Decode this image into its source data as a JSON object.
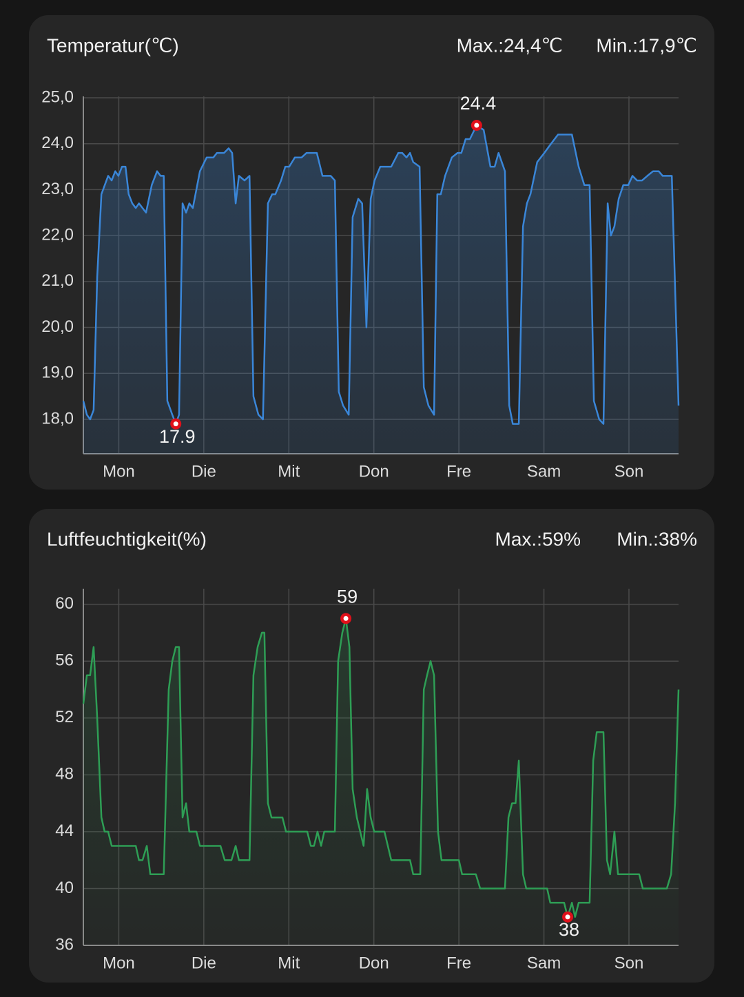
{
  "chart_data": [
    {
      "type": "line",
      "title": "Temperatur(℃)",
      "max_text": "Max.:24,4℃",
      "min_text": "Min.:17,9℃",
      "color": "#3a86d8",
      "x": [
        0,
        1.0,
        1.9,
        2.9,
        3.9,
        5.1,
        7.0,
        8.0,
        9.0,
        9.9,
        10.9,
        11.9,
        12.8,
        13.8,
        14.8,
        15.7,
        17.7,
        19.3,
        20.8,
        21.8,
        22.7,
        23.7,
        25.1,
        26.1,
        27.0,
        28.0,
        29.0,
        29.9,
        30.9,
        32.9,
        34.8,
        36.7,
        37.7,
        39.7,
        41.0,
        42.0,
        43.0,
        43.9,
        45.5,
        46.9,
        48.0,
        49.4,
        50.7,
        52.1,
        53.3,
        54.2,
        55.8,
        57.0,
        58.1,
        59.7,
        61.6,
        63.0,
        65.9,
        67.5,
        69.8,
        71.0,
        72.1,
        73.3,
        74.9,
        76.0,
        77.6,
        78.7,
        79.9,
        81.1,
        82.2,
        83.8,
        86.9,
        88.9,
        90.0,
        91.2,
        92.2,
        93.1,
        94.9,
        96.1,
        97.4,
        99.0,
        99.9,
        100.9,
        102.1,
        104.0,
        105.6,
        106.7,
        107.9,
        109.1,
        111.0,
        113.0,
        114.9,
        116.1,
        117.2,
        119.0,
        120.2,
        121.2,
        122.9,
        124.1,
        125.2,
        126.2,
        128.1,
        130.1,
        132.0,
        134.0,
        137.9,
        139.8,
        141.4,
        142.9,
        144.1,
        145.6,
        146.8,
        148.0,
        148.9,
        149.9,
        151.1,
        152.4,
        153.8,
        155.0,
        156.3,
        157.7,
        159.2,
        160.8,
        162.4,
        163.5,
        166.1,
        168
      ],
      "values": [
        18.4,
        18.1,
        18.0,
        18.2,
        21.1,
        22.9,
        23.3,
        23.2,
        23.4,
        23.3,
        23.5,
        23.5,
        22.9,
        22.7,
        22.6,
        22.7,
        22.5,
        23.1,
        23.4,
        23.3,
        23.3,
        18.4,
        18.1,
        17.9,
        18.1,
        22.7,
        22.5,
        22.7,
        22.6,
        23.4,
        23.7,
        23.7,
        23.8,
        23.8,
        23.9,
        23.8,
        22.7,
        23.3,
        23.2,
        23.3,
        18.5,
        18.1,
        18.0,
        22.7,
        22.9,
        22.9,
        23.2,
        23.5,
        23.5,
        23.7,
        23.7,
        23.8,
        23.8,
        23.3,
        23.3,
        23.2,
        18.6,
        18.3,
        18.1,
        22.4,
        22.8,
        22.7,
        20.0,
        22.8,
        23.2,
        23.5,
        23.5,
        23.8,
        23.8,
        23.7,
        23.8,
        23.6,
        23.5,
        18.7,
        18.3,
        18.1,
        22.9,
        22.9,
        23.3,
        23.7,
        23.8,
        23.8,
        24.1,
        24.1,
        24.4,
        24.3,
        23.5,
        23.5,
        23.8,
        23.4,
        18.3,
        17.9,
        17.9,
        22.2,
        22.7,
        22.9,
        23.6,
        23.8,
        24.0,
        24.2,
        24.2,
        23.5,
        23.1,
        23.1,
        18.4,
        18.0,
        17.9,
        22.7,
        22.0,
        22.2,
        22.8,
        23.1,
        23.1,
        23.3,
        23.2,
        23.2,
        23.3,
        23.4,
        23.4,
        23.3,
        23.3,
        18.3
      ],
      "xlim": [
        0,
        168
      ],
      "xticks": [
        {
          "value": 10,
          "label": "Mon"
        },
        {
          "value": 34,
          "label": "Die"
        },
        {
          "value": 58,
          "label": "Mit"
        },
        {
          "value": 82,
          "label": "Don"
        },
        {
          "value": 106,
          "label": "Fre"
        },
        {
          "value": 130,
          "label": "Sam"
        },
        {
          "value": 154,
          "label": "Son"
        }
      ],
      "ylim": [
        17.25,
        25
      ],
      "yticks": [
        {
          "value": 18,
          "label": "18,0"
        },
        {
          "value": 19,
          "label": "19,0"
        },
        {
          "value": 20,
          "label": "20,0"
        },
        {
          "value": 21,
          "label": "21,0"
        },
        {
          "value": 22,
          "label": "22,0"
        },
        {
          "value": 23,
          "label": "23,0"
        },
        {
          "value": 24,
          "label": "24,0"
        },
        {
          "value": 25,
          "label": "25,0"
        }
      ],
      "grid": true,
      "annotations": [
        {
          "x": 111.0,
          "value": 24.4,
          "position": "above"
        },
        {
          "x": 26.1,
          "value": 17.9,
          "position": "below"
        }
      ]
    },
    {
      "type": "line",
      "title": "Luftfeuchtigkeit(%)",
      "max_text": "Max.:59%",
      "min_text": "Min.:38%",
      "color": "#2e9e55",
      "x": [
        0,
        1.0,
        1.9,
        2.9,
        3.9,
        5.1,
        6.0,
        7.0,
        8.0,
        14.8,
        15.7,
        16.7,
        17.9,
        18.9,
        22.7,
        24.1,
        25.1,
        26.1,
        27.0,
        28.0,
        29.0,
        29.9,
        31.9,
        32.9,
        38.7,
        39.9,
        41.8,
        43.0,
        43.9,
        46.9,
        48.0,
        49.2,
        50.4,
        51.1,
        52.1,
        53.1,
        56.2,
        57.2,
        63.2,
        64.2,
        65.1,
        66.1,
        67.1,
        68.0,
        71.0,
        71.9,
        73.1,
        74.1,
        75.1,
        76.0,
        77.2,
        79.1,
        80.1,
        81.1,
        82.1,
        85.0,
        86.9,
        92.2,
        93.1,
        95.1,
        96.1,
        97.0,
        98.0,
        99.0,
        100.1,
        101.1,
        106.0,
        106.9,
        110.8,
        112.0,
        119.0,
        120.0,
        121.0,
        122.0,
        122.9,
        124.1,
        125.0,
        130.9,
        131.8,
        135.7,
        136.7,
        137.9,
        138.8,
        139.8,
        142.9,
        143.9,
        144.9,
        146.8,
        147.8,
        148.7,
        149.9,
        150.9,
        156.9,
        157.9,
        164.7,
        165.9,
        167.0,
        168.0
      ],
      "values": [
        53,
        55,
        55,
        57,
        52,
        45,
        44,
        44,
        43,
        43,
        42,
        42,
        43,
        41,
        41,
        54,
        56,
        57,
        57,
        45,
        46,
        44,
        44,
        43,
        43,
        42,
        42,
        43,
        42,
        42,
        55,
        57,
        58,
        58,
        46,
        45,
        45,
        44,
        44,
        43,
        43,
        44,
        43,
        44,
        44,
        56,
        58,
        59,
        57,
        47,
        45,
        43,
        47,
        45,
        44,
        44,
        42,
        42,
        41,
        41,
        54,
        55,
        56,
        55,
        44,
        42,
        42,
        41,
        41,
        40,
        40,
        45,
        46,
        46,
        49,
        41,
        40,
        40,
        39,
        39,
        38,
        39,
        38,
        39,
        39,
        49,
        51,
        51,
        42,
        41,
        44,
        41,
        41,
        40,
        40,
        41,
        46,
        54
      ],
      "xlim": [
        0,
        168
      ],
      "xticks": [
        {
          "value": 10,
          "label": "Mon"
        },
        {
          "value": 34,
          "label": "Die"
        },
        {
          "value": 58,
          "label": "Mit"
        },
        {
          "value": 82,
          "label": "Don"
        },
        {
          "value": 106,
          "label": "Fre"
        },
        {
          "value": 130,
          "label": "Sam"
        },
        {
          "value": 154,
          "label": "Son"
        }
      ],
      "ylim": [
        36,
        61
      ],
      "yticks": [
        36,
        40,
        44,
        48,
        52,
        56,
        60
      ],
      "grid": true,
      "annotations": [
        {
          "x": 74.1,
          "value": 59,
          "position": "above"
        },
        {
          "x": 136.7,
          "value": 38,
          "position": "below"
        }
      ]
    }
  ]
}
